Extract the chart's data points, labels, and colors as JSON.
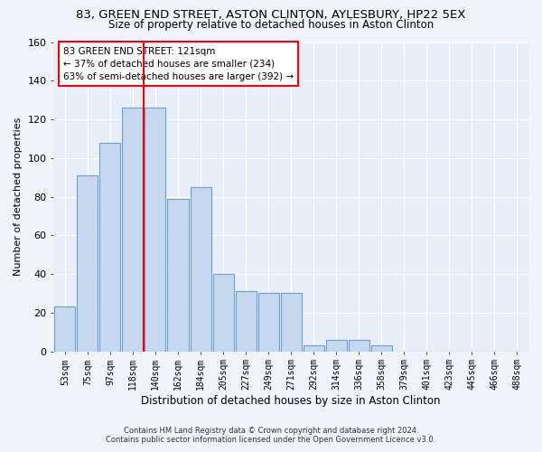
{
  "title": "83, GREEN END STREET, ASTON CLINTON, AYLESBURY, HP22 5EX",
  "subtitle": "Size of property relative to detached houses in Aston Clinton",
  "xlabel": "Distribution of detached houses by size in Aston Clinton",
  "ylabel": "Number of detached properties",
  "footnote1": "Contains HM Land Registry data © Crown copyright and database right 2024.",
  "footnote2": "Contains public sector information licensed under the Open Government Licence v3.0.",
  "bar_labels": [
    "53sqm",
    "75sqm",
    "97sqm",
    "118sqm",
    "140sqm",
    "162sqm",
    "184sqm",
    "205sqm",
    "227sqm",
    "249sqm",
    "271sqm",
    "292sqm",
    "314sqm",
    "336sqm",
    "358sqm",
    "379sqm",
    "401sqm",
    "423sqm",
    "445sqm",
    "466sqm",
    "488sqm"
  ],
  "bar_values": [
    23,
    91,
    108,
    126,
    126,
    79,
    85,
    40,
    31,
    30,
    30,
    3,
    6,
    6,
    3,
    0,
    0,
    0,
    0,
    0,
    0
  ],
  "bar_color": "#c5d8f0",
  "bar_edge_color": "#6b9fd4",
  "vline_x_idx": 3,
  "vline_color": "red",
  "annotation_title": "83 GREEN END STREET: 121sqm",
  "annotation_line2": "← 37% of detached houses are smaller (234)",
  "annotation_line3": "63% of semi-detached houses are larger (392) →",
  "annotation_box_color": "white",
  "annotation_box_edge": "red",
  "ylim": [
    0,
    160
  ],
  "yticks": [
    0,
    20,
    40,
    60,
    80,
    100,
    120,
    140,
    160
  ],
  "fig_bg_color": "#f0f4fa",
  "axes_bg_color": "#e8eef8",
  "grid_color": "white",
  "title_fontsize": 9.5,
  "subtitle_fontsize": 8.5,
  "footnote_fontsize": 6.0
}
